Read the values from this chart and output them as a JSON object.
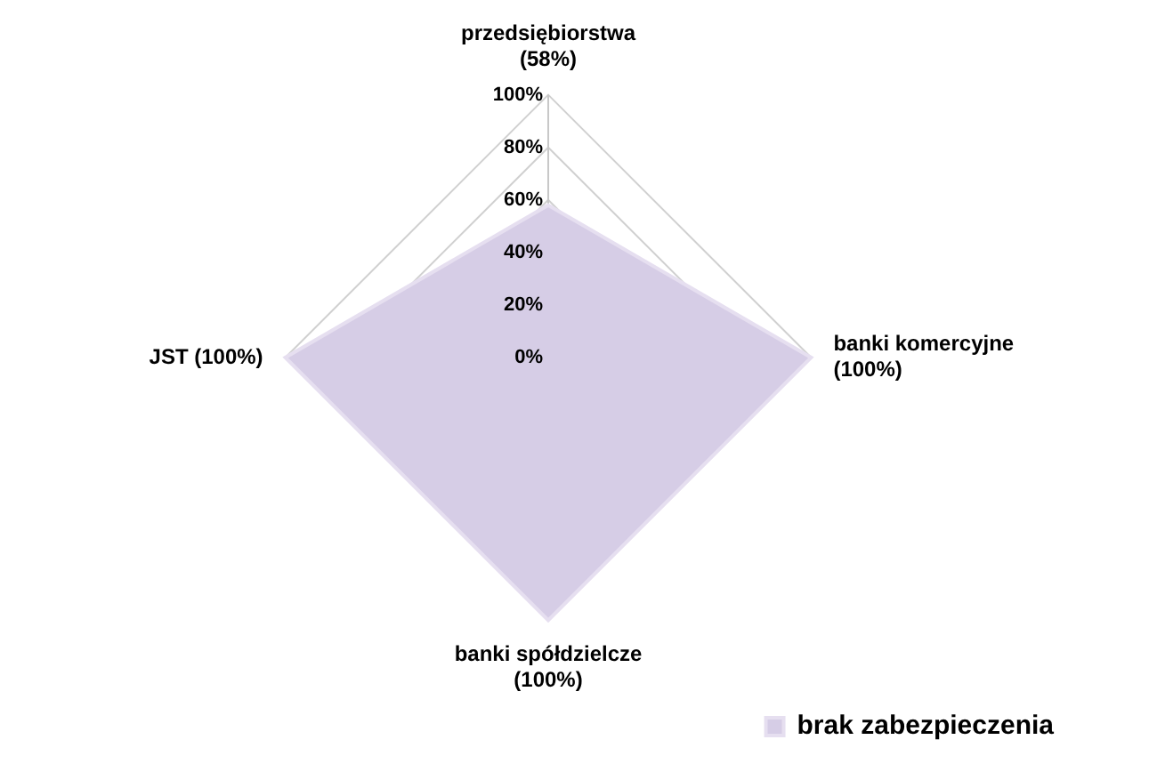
{
  "chart_data": {
    "type": "radar",
    "categories": [
      "przedsiębiorstwa (58%)",
      "banki komercyjne (100%)",
      "banki spółdzielcze (100%)",
      "JST (100%)"
    ],
    "series": [
      {
        "name": "brak zabezpieczenia",
        "color": "#d6cde6",
        "values": [
          58,
          100,
          100,
          100
        ]
      }
    ],
    "ylim": [
      0,
      100
    ],
    "yticks": [
      {
        "value": 0,
        "label": "0%"
      },
      {
        "value": 20,
        "label": "20%"
      },
      {
        "value": 40,
        "label": "40%"
      },
      {
        "value": 60,
        "label": "60%"
      },
      {
        "value": 80,
        "label": "80%"
      },
      {
        "value": 100,
        "label": "100%"
      }
    ],
    "grid": true,
    "legend": "bottom right"
  }
}
